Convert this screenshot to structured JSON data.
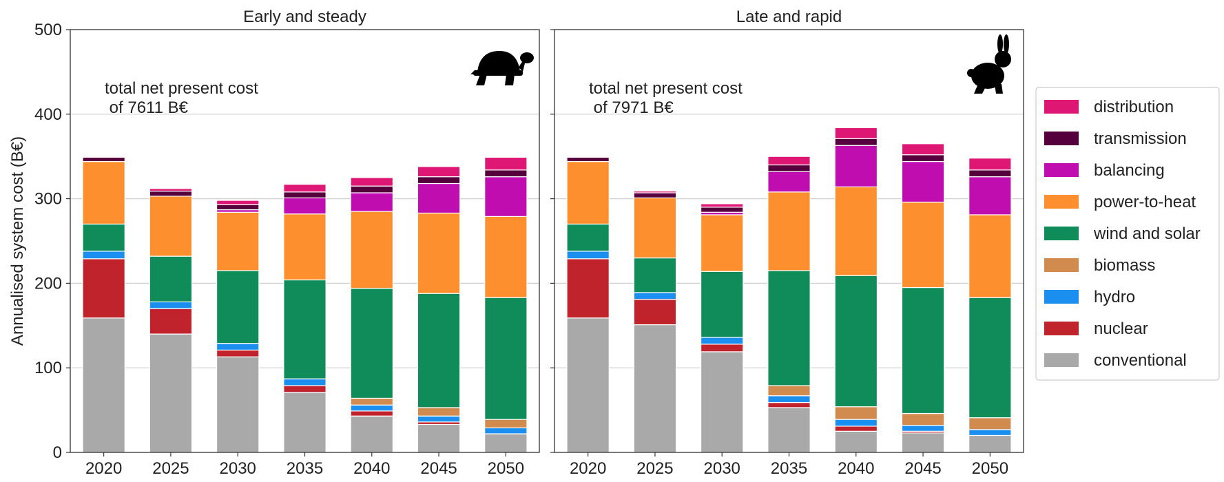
{
  "chart_data": {
    "type": "bar",
    "stacked": true,
    "ylabel": "Annualised system cost (B€)",
    "ylim": [
      0,
      500
    ],
    "yticks": [
      0,
      100,
      200,
      300,
      400,
      500
    ],
    "grid": "horizontal",
    "legend_position": "right",
    "categories": [
      "2020",
      "2025",
      "2030",
      "2035",
      "2040",
      "2045",
      "2050"
    ],
    "series": [
      {
        "name": "conventional",
        "color": "#a9a9a9"
      },
      {
        "name": "nuclear",
        "color": "#c0232c"
      },
      {
        "name": "hydro",
        "color": "#1a8ff0"
      },
      {
        "name": "biomass",
        "color": "#d18b4e"
      },
      {
        "name": "wind and solar",
        "color": "#0f8c5a"
      },
      {
        "name": "power-to-heat",
        "color": "#fd8f2e"
      },
      {
        "name": "balancing",
        "color": "#c00db0"
      },
      {
        "name": "transmission",
        "color": "#55003d"
      },
      {
        "name": "distribution",
        "color": "#dd1773"
      }
    ],
    "panels": [
      {
        "title": "Early and steady",
        "annotation_line1": "total net present cost",
        "annotation_line2": " of 7611 B€",
        "icon": "turtle-icon",
        "values": [
          [
            159,
            70,
            9,
            0,
            32,
            74,
            0,
            5,
            1
          ],
          [
            140,
            30,
            8,
            0,
            54,
            71,
            0,
            6,
            3
          ],
          [
            113,
            8,
            8,
            0,
            86,
            69,
            3,
            6,
            5
          ],
          [
            71,
            8,
            8,
            0,
            117,
            78,
            19,
            7,
            9
          ],
          [
            43,
            6,
            7,
            8,
            130,
            91,
            22,
            8,
            10
          ],
          [
            33,
            3,
            7,
            10,
            135,
            95,
            35,
            8,
            12
          ],
          [
            22,
            0,
            7,
            10,
            144,
            96,
            47,
            8,
            15
          ]
        ]
      },
      {
        "title": "Late and rapid",
        "annotation_line1": "total net present cost",
        "annotation_line2": " of 7971 B€",
        "icon": "rabbit-icon",
        "values": [
          [
            159,
            70,
            9,
            0,
            32,
            74,
            0,
            5,
            1
          ],
          [
            151,
            30,
            8,
            0,
            41,
            71,
            0,
            6,
            2
          ],
          [
            119,
            9,
            8,
            0,
            78,
            67,
            3,
            6,
            4
          ],
          [
            53,
            6,
            8,
            12,
            136,
            93,
            24,
            8,
            10
          ],
          [
            25,
            6,
            8,
            15,
            155,
            105,
            49,
            8,
            13
          ],
          [
            23,
            2,
            7,
            14,
            149,
            101,
            48,
            8,
            13
          ],
          [
            20,
            0,
            7,
            14,
            142,
            98,
            45,
            8,
            14
          ]
        ]
      }
    ]
  }
}
